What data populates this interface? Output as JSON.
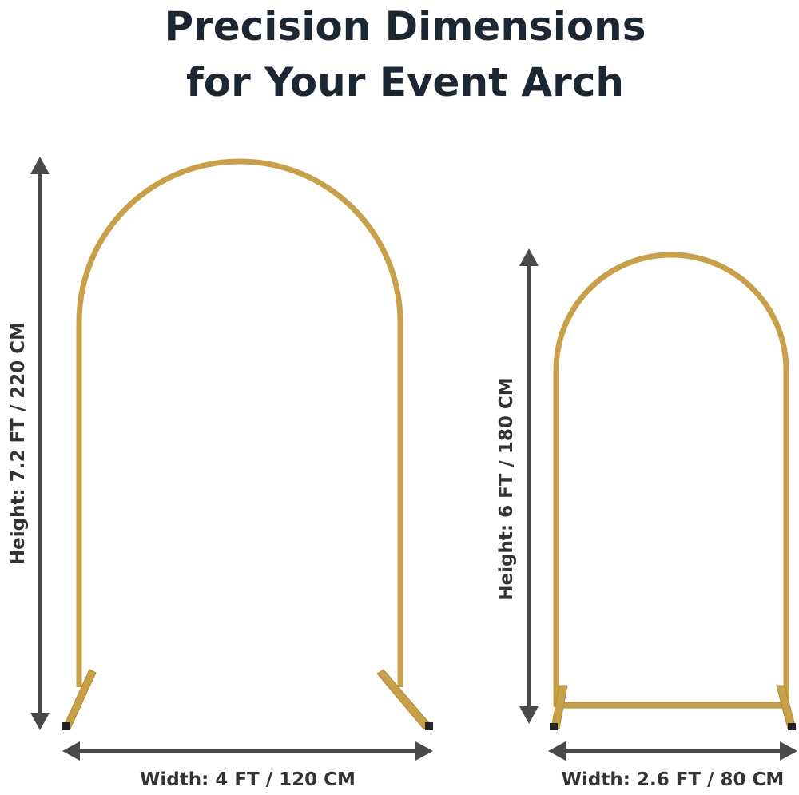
{
  "title": [
    "Precision Dimensions",
    "for Your Event Arch"
  ],
  "arches": [
    {
      "height_label": "Height: 7.2 FT / 220 CM",
      "width_label": "Width: 4 FT / 120 CM"
    },
    {
      "height_label": "Height: 6 FT / 180 CM",
      "width_label": "Width: 2.6 FT / 80 CM"
    }
  ]
}
